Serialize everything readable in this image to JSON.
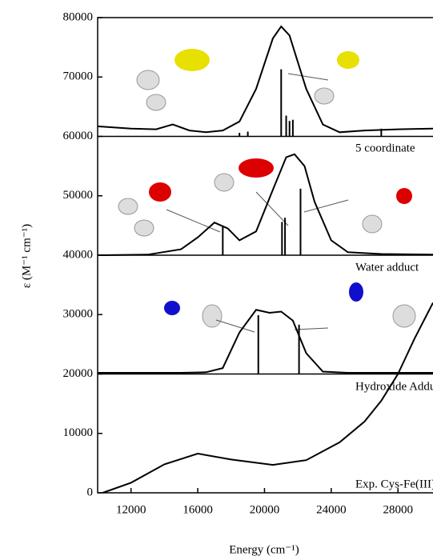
{
  "chart_data": {
    "type": "line",
    "xlabel": "Energy (cm⁻¹)",
    "ylabel": "ε (M⁻¹ cm⁻¹)",
    "xlim": [
      10000,
      30100
    ],
    "ylim": [
      0,
      80000
    ],
    "xticks": [
      12000,
      16000,
      20000,
      24000,
      28000
    ],
    "yticks": [
      0,
      10000,
      20000,
      30000,
      40000,
      50000,
      60000,
      70000,
      80000
    ],
    "panel_lines": [
      20000,
      40000,
      60000
    ],
    "series": [
      {
        "label": "5 coordinate",
        "color": "#000000",
        "x": [
          10000,
          12000,
          13500,
          14500,
          15500,
          16500,
          17500,
          18500,
          19500,
          20500,
          21000,
          21500,
          22500,
          23500,
          24500,
          26000,
          28000,
          30100
        ],
        "values": [
          61700,
          61300,
          61200,
          62000,
          61000,
          60700,
          61000,
          62500,
          68000,
          76500,
          78500,
          77000,
          68000,
          62000,
          60700,
          61000,
          61200,
          61300
        ]
      },
      {
        "label": "Water adduct",
        "color": "#000000",
        "x": [
          10000,
          13000,
          15000,
          16000,
          17000,
          17800,
          18500,
          19500,
          20500,
          21300,
          21800,
          22400,
          23000,
          24000,
          25000,
          27000,
          30100
        ],
        "values": [
          40000,
          40100,
          41000,
          43000,
          45500,
          44500,
          42500,
          44000,
          51000,
          56500,
          57000,
          55000,
          49000,
          42500,
          40500,
          40200,
          40100
        ]
      },
      {
        "label": "Hydroxide Adduct",
        "color": "#000000",
        "x": [
          10000,
          15000,
          16500,
          17500,
          18500,
          19500,
          20300,
          21000,
          21700,
          22500,
          23500,
          25000,
          30100
        ],
        "values": [
          20200,
          20200,
          20300,
          21000,
          27000,
          30800,
          30300,
          30500,
          29000,
          23500,
          20400,
          20200,
          20200
        ]
      },
      {
        "label": "Exp. Cys-Fe(III)CDO",
        "color": "#000000",
        "x": [
          10300,
          12000,
          14000,
          16000,
          18000,
          20500,
          22500,
          24500,
          26000,
          27000,
          28000,
          29000,
          30100
        ],
        "values": [
          0,
          1700,
          4800,
          6600,
          5600,
          4700,
          5500,
          8500,
          12000,
          15500,
          20000,
          26000,
          32000
        ]
      }
    ],
    "sticks": [
      {
        "base": 60000,
        "x": [
          18500,
          19000,
          21000,
          21300,
          21500,
          21700,
          27000
        ],
        "values": [
          60600,
          60800,
          71300,
          63500,
          62600,
          62800,
          61300
        ]
      },
      {
        "base": 40000,
        "x": [
          17500,
          21050,
          21230,
          22160
        ],
        "values": [
          45000,
          45600,
          46300,
          51200
        ]
      },
      {
        "base": 20000,
        "x": [
          19630,
          22070
        ],
        "values": [
          29900,
          28300
        ]
      }
    ]
  }
}
